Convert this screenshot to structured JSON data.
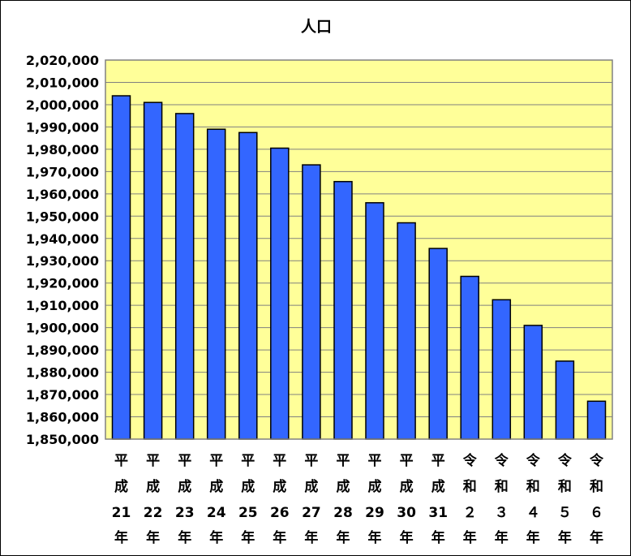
{
  "chart_data": {
    "type": "bar",
    "title": "人口",
    "xlabel": "",
    "ylabel": "",
    "ylim": [
      1850000,
      2020000
    ],
    "ytick_step": 10000,
    "yticks": [
      "2,020,000",
      "2,010,000",
      "2,000,000",
      "1,990,000",
      "1,980,000",
      "1,970,000",
      "1,960,000",
      "1,950,000",
      "1,940,000",
      "1,930,000",
      "1,920,000",
      "1,910,000",
      "1,900,000",
      "1,890,000",
      "1,880,000",
      "1,870,000",
      "1,860,000",
      "1,850,000"
    ],
    "grid": true,
    "legend": "none",
    "categories": [
      [
        "平",
        "成",
        "21",
        "年"
      ],
      [
        "平",
        "成",
        "22",
        "年"
      ],
      [
        "平",
        "成",
        "23",
        "年"
      ],
      [
        "平",
        "成",
        "24",
        "年"
      ],
      [
        "平",
        "成",
        "25",
        "年"
      ],
      [
        "平",
        "成",
        "26",
        "年"
      ],
      [
        "平",
        "成",
        "27",
        "年"
      ],
      [
        "平",
        "成",
        "28",
        "年"
      ],
      [
        "平",
        "成",
        "29",
        "年"
      ],
      [
        "平",
        "成",
        "30",
        "年"
      ],
      [
        "平",
        "成",
        "31",
        "年"
      ],
      [
        "令",
        "和",
        "２",
        "年"
      ],
      [
        "令",
        "和",
        "３",
        "年"
      ],
      [
        "令",
        "和",
        "４",
        "年"
      ],
      [
        "令",
        "和",
        "５",
        "年"
      ],
      [
        "令",
        "和",
        "６",
        "年"
      ]
    ],
    "values": [
      2004000,
      2001000,
      1996000,
      1989000,
      1987500,
      1980500,
      1973000,
      1965500,
      1956000,
      1947000,
      1935500,
      1923000,
      1912500,
      1901000,
      1885000,
      1867000
    ],
    "colors": {
      "bar": "#3366ff",
      "bar_outline": "#000000",
      "plot_background": "#ffff99",
      "plot_border": "#808080",
      "gridline": "#808080"
    }
  }
}
